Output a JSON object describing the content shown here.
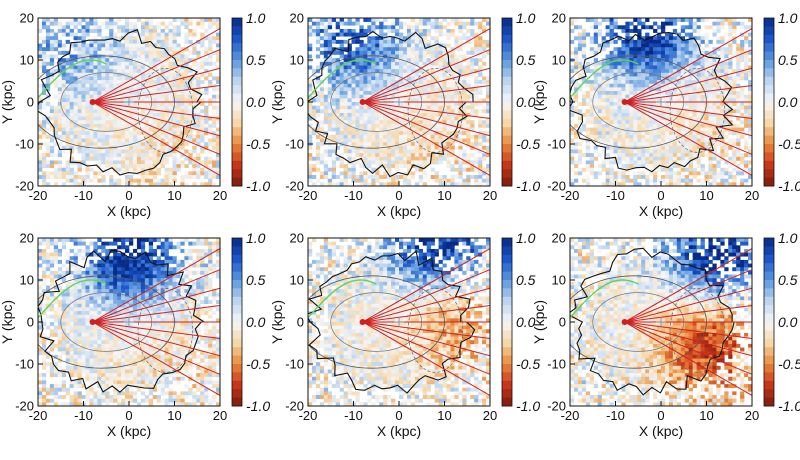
{
  "chart_data": {
    "type": "heatmap",
    "layout": "2x3 panel grid",
    "panel_count": 6,
    "xlabel": "X (kpc)",
    "ylabel": "Y (kpc)",
    "xlim": [
      -20,
      20
    ],
    "ylim": [
      -20,
      20
    ],
    "xticks": [
      "-20",
      "-10",
      "0",
      "10",
      "20"
    ],
    "yticks": [
      "-20",
      "-10",
      "0",
      "10",
      "20"
    ],
    "colorbar": {
      "range": [
        -1.0,
        1.0
      ],
      "ticks": [
        "1.0",
        "0.5",
        "0.0",
        "-0.5",
        "-1.0"
      ],
      "colors": [
        "#7a1a0a",
        "#c8361a",
        "#e9893a",
        "#f6d7a8",
        "#f6f6f6",
        "#bcd5ef",
        "#5b97de",
        "#1c56c8",
        "#062a86"
      ]
    },
    "sun_position": [
      -8,
      0
    ],
    "galactic_center": [
      0,
      0
    ],
    "ray_count": 9,
    "panels": [
      {
        "id": 1,
        "blue_center": [
          -12,
          12
        ],
        "blue_strength": 0.4,
        "orange_center": [
          8,
          -12
        ],
        "orange_strength": 0.1
      },
      {
        "id": 2,
        "blue_center": [
          -10,
          14
        ],
        "blue_strength": 0.75,
        "orange_center": [
          8,
          -10
        ],
        "orange_strength": 0.15
      },
      {
        "id": 3,
        "blue_center": [
          -3,
          16
        ],
        "blue_strength": 0.95,
        "orange_center": [
          10,
          -6
        ],
        "orange_strength": 0.12
      },
      {
        "id": 4,
        "blue_center": [
          0,
          15
        ],
        "blue_strength": 1.0,
        "orange_center": [
          8,
          -8
        ],
        "orange_strength": 0.12
      },
      {
        "id": 5,
        "blue_center": [
          8,
          18
        ],
        "blue_strength": 0.95,
        "orange_center": [
          12,
          0
        ],
        "orange_strength": 0.4
      },
      {
        "id": 6,
        "blue_center": [
          12,
          16
        ],
        "blue_strength": 1.0,
        "orange_center": [
          10,
          -6
        ],
        "orange_strength": 0.75
      }
    ]
  }
}
